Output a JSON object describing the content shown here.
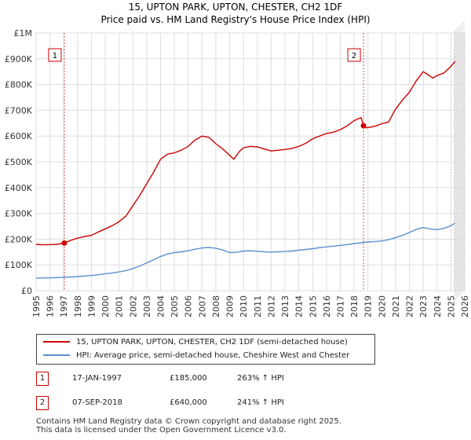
{
  "title_line1": "15, UPTON PARK, UPTON, CHESTER, CH2 1DF",
  "title_line2": "Price paid vs. HM Land Registry's House Price Index (HPI)",
  "colors": {
    "property": "#cc0000",
    "hpi": "#5b8fd1",
    "grid": "#dddddd",
    "shade": "#f0f0f0",
    "badge": "#cc0000"
  },
  "chart_data": {
    "type": "line",
    "title": "15, UPTON PARK, UPTON, CHESTER, CH2 1DF — Price paid vs. HM Land Registry's House Price Index (HPI)",
    "xlabel": "",
    "ylabel": "",
    "xlim": [
      1995,
      2026
    ],
    "ylim": [
      0,
      1000000
    ],
    "x_ticks": [
      1995,
      1996,
      1997,
      1998,
      1999,
      2000,
      2001,
      2002,
      2003,
      2004,
      2005,
      2006,
      2007,
      2008,
      2009,
      2010,
      2011,
      2012,
      2013,
      2014,
      2015,
      2016,
      2017,
      2018,
      2019,
      2020,
      2021,
      2022,
      2023,
      2024,
      2025,
      2026
    ],
    "y_ticks": [
      0,
      100000,
      200000,
      300000,
      400000,
      500000,
      600000,
      700000,
      800000,
      900000,
      1000000
    ],
    "y_tick_labels": [
      "£0",
      "£100K",
      "£200K",
      "£300K",
      "£400K",
      "£500K",
      "£600K",
      "£700K",
      "£800K",
      "£900K",
      "£1M"
    ],
    "grid": true,
    "series": [
      {
        "name": "15, UPTON PARK, UPTON, CHESTER, CH2 1DF (semi-detached house)",
        "x": [
          1995,
          1995.5,
          1996,
          1996.5,
          1997.04,
          1997.5,
          1998,
          1998.5,
          1999,
          1999.5,
          2000,
          2000.5,
          2001,
          2001.5,
          2002,
          2002.5,
          2003,
          2003.5,
          2004,
          2004.5,
          2005,
          2005.5,
          2006,
          2006.5,
          2007,
          2007.5,
          2008,
          2008.5,
          2009,
          2009.3,
          2009.7,
          2010,
          2010.5,
          2011,
          2011.5,
          2012,
          2012.5,
          2013,
          2013.5,
          2014,
          2014.5,
          2015,
          2015.5,
          2016,
          2016.5,
          2017,
          2017.5,
          2018,
          2018.5,
          2018.68,
          2018.9,
          2019.5,
          2020,
          2020.5,
          2021,
          2021.5,
          2022,
          2022.5,
          2023,
          2023.3,
          2023.7,
          2024,
          2024.5,
          2025,
          2025.3
        ],
        "values": [
          180000,
          178000,
          179000,
          180000,
          185000,
          195000,
          204000,
          210000,
          215000,
          228000,
          240000,
          252000,
          268000,
          290000,
          330000,
          370000,
          415000,
          460000,
          510000,
          530000,
          535000,
          545000,
          560000,
          585000,
          600000,
          595000,
          570000,
          550000,
          525000,
          510000,
          540000,
          555000,
          560000,
          558000,
          550000,
          542000,
          545000,
          548000,
          552000,
          560000,
          572000,
          590000,
          600000,
          610000,
          615000,
          625000,
          640000,
          660000,
          672000,
          640000,
          632000,
          638000,
          648000,
          655000,
          705000,
          740000,
          770000,
          815000,
          850000,
          840000,
          825000,
          835000,
          845000,
          870000,
          890000
        ]
      },
      {
        "name": "HPI: Average price, semi-detached house, Cheshire West and Chester",
        "x": [
          1995,
          1995.5,
          1996,
          1996.5,
          1997,
          1997.5,
          1998,
          1998.5,
          1999,
          1999.5,
          2000,
          2000.5,
          2001,
          2001.5,
          2002,
          2002.5,
          2003,
          2003.5,
          2004,
          2004.5,
          2005,
          2005.5,
          2006,
          2006.5,
          2007,
          2007.5,
          2008,
          2008.5,
          2009,
          2009.5,
          2010,
          2010.5,
          2011,
          2011.5,
          2012,
          2012.5,
          2013,
          2013.5,
          2014,
          2014.5,
          2015,
          2015.5,
          2016,
          2016.5,
          2017,
          2017.5,
          2018,
          2018.5,
          2019,
          2019.5,
          2020,
          2020.5,
          2021,
          2021.5,
          2022,
          2022.5,
          2023,
          2023.5,
          2024,
          2024.5,
          2025,
          2025.3
        ],
        "values": [
          49000,
          49500,
          50000,
          51000,
          52000,
          53500,
          55000,
          57000,
          59000,
          62000,
          66000,
          69000,
          73000,
          78000,
          86000,
          96000,
          108000,
          120000,
          133000,
          142000,
          148000,
          151000,
          155000,
          161000,
          166000,
          168000,
          165000,
          158000,
          148000,
          149000,
          154000,
          155000,
          153000,
          151000,
          150000,
          151000,
          152000,
          154000,
          157000,
          160000,
          163000,
          167000,
          170000,
          173000,
          176000,
          179000,
          183000,
          186000,
          189000,
          191000,
          193000,
          198000,
          206000,
          215000,
          226000,
          238000,
          245000,
          240000,
          237000,
          242000,
          252000,
          262000
        ]
      }
    ],
    "annotations": [
      {
        "label": "1",
        "x": 1997.04,
        "value": 185000
      },
      {
        "label": "2",
        "x": 2018.68,
        "value": 640000
      }
    ]
  },
  "legend": {
    "property_label": "15, UPTON PARK, UPTON, CHESTER, CH2 1DF (semi-detached house)",
    "hpi_label": "HPI: Average price, semi-detached house, Cheshire West and Chester"
  },
  "transactions": [
    {
      "num": "1",
      "date": "17-JAN-1997",
      "price": "£185,000",
      "hpi": "263% ↑ HPI"
    },
    {
      "num": "2",
      "date": "07-SEP-2018",
      "price": "£640,000",
      "hpi": "241% ↑ HPI"
    }
  ],
  "footer_line1": "Contains HM Land Registry data © Crown copyright and database right 2025.",
  "footer_line2": "This data is licensed under the Open Government Licence v3.0."
}
